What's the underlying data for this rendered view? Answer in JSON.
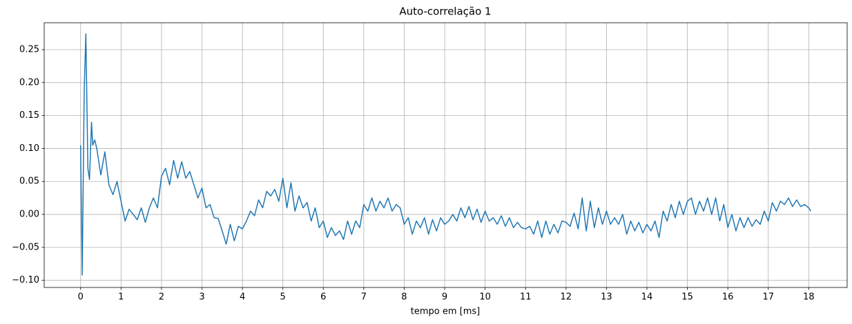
{
  "chart_data": {
    "type": "line",
    "title": "Auto-correlação 1",
    "x_label": "tempo em [ms]",
    "x": [
      0,
      0.04,
      0.09,
      0.13,
      0.18,
      0.22,
      0.27,
      0.3,
      0.35,
      0.4,
      0.5,
      0.6,
      0.7,
      0.8,
      0.9,
      1.0,
      1.1,
      1.2,
      1.3,
      1.4,
      1.5,
      1.6,
      1.7,
      1.8,
      1.9,
      2.0,
      2.1,
      2.2,
      2.3,
      2.4,
      2.5,
      2.6,
      2.7,
      2.8,
      2.9,
      3.0,
      3.1,
      3.2,
      3.3,
      3.4,
      3.5,
      3.6,
      3.7,
      3.8,
      3.9,
      4.0,
      4.1,
      4.2,
      4.3,
      4.4,
      4.5,
      4.6,
      4.7,
      4.8,
      4.9,
      5.0,
      5.1,
      5.2,
      5.3,
      5.4,
      5.5,
      5.6,
      5.7,
      5.8,
      5.9,
      6.0,
      6.1,
      6.2,
      6.3,
      6.4,
      6.5,
      6.6,
      6.7,
      6.8,
      6.9,
      7.0,
      7.1,
      7.2,
      7.3,
      7.4,
      7.5,
      7.6,
      7.7,
      7.8,
      7.9,
      8.0,
      8.1,
      8.2,
      8.3,
      8.4,
      8.5,
      8.6,
      8.7,
      8.8,
      8.9,
      9.0,
      9.1,
      9.2,
      9.3,
      9.4,
      9.5,
      9.6,
      9.7,
      9.8,
      9.9,
      10.0,
      10.1,
      10.2,
      10.3,
      10.4,
      10.5,
      10.6,
      10.7,
      10.8,
      10.9,
      11.0,
      11.1,
      11.2,
      11.3,
      11.4,
      11.5,
      11.6,
      11.7,
      11.8,
      11.9,
      12.0,
      12.1,
      12.2,
      12.3,
      12.4,
      12.5,
      12.6,
      12.7,
      12.8,
      12.9,
      13.0,
      13.1,
      13.2,
      13.3,
      13.4,
      13.5,
      13.6,
      13.7,
      13.8,
      13.9,
      14.0,
      14.1,
      14.2,
      14.3,
      14.4,
      14.5,
      14.6,
      14.7,
      14.8,
      14.9,
      15.0,
      15.1,
      15.2,
      15.3,
      15.4,
      15.5,
      15.6,
      15.7,
      15.8,
      15.9,
      16.0,
      16.1,
      16.2,
      16.3,
      16.4,
      16.5,
      16.6,
      16.7,
      16.8,
      16.9,
      17.0,
      17.1,
      17.2,
      17.3,
      17.4,
      17.5,
      17.6,
      17.7,
      17.8,
      17.9,
      18.0,
      18.05
    ],
    "values": [
      0.105,
      -0.092,
      0.19,
      0.274,
      0.07,
      0.053,
      0.14,
      0.105,
      0.113,
      0.1,
      0.06,
      0.095,
      0.045,
      0.03,
      0.05,
      0.02,
      -0.01,
      0.008,
      0.0,
      -0.008,
      0.01,
      -0.012,
      0.01,
      0.025,
      0.01,
      0.058,
      0.07,
      0.045,
      0.082,
      0.055,
      0.08,
      0.055,
      0.065,
      0.045,
      0.025,
      0.04,
      0.01,
      0.015,
      -0.005,
      -0.006,
      -0.025,
      -0.045,
      -0.015,
      -0.04,
      -0.018,
      -0.022,
      -0.01,
      0.005,
      -0.002,
      0.022,
      0.01,
      0.035,
      0.028,
      0.038,
      0.02,
      0.055,
      0.01,
      0.048,
      0.005,
      0.028,
      0.01,
      0.018,
      -0.01,
      0.01,
      -0.02,
      -0.01,
      -0.035,
      -0.02,
      -0.032,
      -0.025,
      -0.038,
      -0.01,
      -0.03,
      -0.01,
      -0.02,
      0.015,
      0.005,
      0.025,
      0.005,
      0.02,
      0.01,
      0.025,
      0.005,
      0.015,
      0.01,
      -0.015,
      -0.005,
      -0.03,
      -0.01,
      -0.02,
      -0.005,
      -0.03,
      -0.008,
      -0.025,
      -0.005,
      -0.015,
      -0.01,
      0.0,
      -0.01,
      0.01,
      -0.005,
      0.012,
      -0.008,
      0.008,
      -0.012,
      0.005,
      -0.01,
      -0.005,
      -0.015,
      -0.002,
      -0.018,
      -0.005,
      -0.02,
      -0.012,
      -0.02,
      -0.022,
      -0.018,
      -0.03,
      -0.01,
      -0.035,
      -0.01,
      -0.03,
      -0.015,
      -0.028,
      -0.01,
      -0.012,
      -0.018,
      0.002,
      -0.022,
      0.025,
      -0.025,
      0.02,
      -0.02,
      0.01,
      -0.015,
      0.005,
      -0.015,
      -0.005,
      -0.015,
      0.0,
      -0.03,
      -0.01,
      -0.025,
      -0.012,
      -0.028,
      -0.015,
      -0.025,
      -0.01,
      -0.035,
      0.005,
      -0.01,
      0.015,
      -0.005,
      0.02,
      0.0,
      0.02,
      0.025,
      0.0,
      0.02,
      0.005,
      0.025,
      0.0,
      0.025,
      -0.01,
      0.015,
      -0.02,
      0.0,
      -0.025,
      -0.005,
      -0.02,
      -0.005,
      -0.018,
      -0.008,
      -0.015,
      0.005,
      -0.01,
      0.018,
      0.005,
      0.02,
      0.015,
      0.025,
      0.012,
      0.022,
      0.012,
      0.015,
      0.01,
      0.005
    ],
    "color": "#1f77b4",
    "xlim": [
      -0.9,
      18.95
    ],
    "ylim": [
      -0.1108,
      0.2908
    ],
    "xticks": [
      0,
      1,
      2,
      3,
      4,
      5,
      6,
      7,
      8,
      9,
      10,
      11,
      12,
      13,
      14,
      15,
      16,
      17,
      18
    ],
    "yticks": [
      {
        "value": -0.1,
        "label": "−0.10"
      },
      {
        "value": -0.05,
        "label": "−0.05"
      },
      {
        "value": 0,
        "label": "0.00"
      },
      0.05,
      {
        "value": 0.1,
        "label": "0.10"
      },
      0.15,
      {
        "value": 0.2,
        "label": "0.20"
      },
      0.25
    ],
    "grid": true
  }
}
